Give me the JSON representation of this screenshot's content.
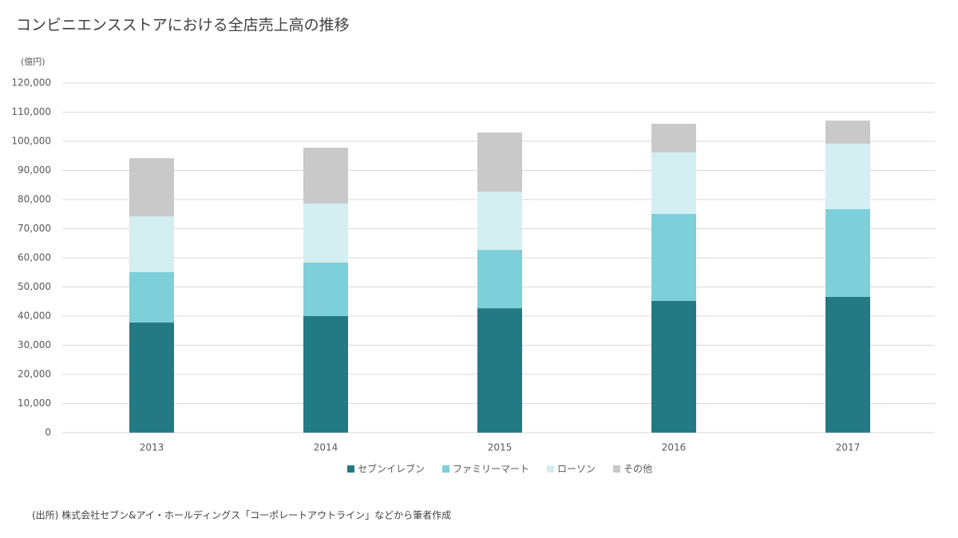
{
  "chart_data": {
    "type": "stacked_bar",
    "title": "コンビニエンスストアにおける全店売上高の推移",
    "y_axis_label": "(億円)",
    "source": "(出所) 株式会社セブン&アイ・ホールディングス「コーポレートアウトライン」などから筆者作成",
    "categories": [
      "2013",
      "2014",
      "2015",
      "2016",
      "2017"
    ],
    "series": [
      {
        "name": "セブンイレブン",
        "color": "#237a85",
        "values": [
          37800,
          40000,
          42700,
          45200,
          46600
        ]
      },
      {
        "name": "ファミリーマート",
        "color": "#7dcfda",
        "values": [
          17300,
          18400,
          20000,
          29900,
          30100
        ]
      },
      {
        "name": "ローソン",
        "color": "#d3eff2",
        "values": [
          19100,
          20200,
          20000,
          21100,
          22500
        ]
      },
      {
        "name": "その他",
        "color": "#c9c9c9",
        "values": [
          20000,
          19200,
          20300,
          9800,
          7900
        ]
      }
    ],
    "ylim": [
      0,
      120000
    ],
    "yticks": [
      0,
      {
        "value": 10000,
        "label": "10,000"
      },
      {
        "value": 20000,
        "label": "20,000"
      },
      {
        "value": 30000,
        "label": "30,000"
      },
      {
        "value": 40000,
        "label": "40,000"
      },
      {
        "value": 50000,
        "label": "50,000"
      },
      {
        "value": 60000,
        "label": "60,000"
      },
      {
        "value": 70000,
        "label": "70,000"
      },
      {
        "value": 80000,
        "label": "80,000"
      },
      {
        "value": 90000,
        "label": "90,000"
      },
      {
        "value": 100000,
        "label": "100,000"
      },
      {
        "value": 110000,
        "label": "110,000"
      },
      {
        "value": 120000,
        "label": "120,000"
      }
    ],
    "grid": true,
    "legend": "bottom"
  }
}
